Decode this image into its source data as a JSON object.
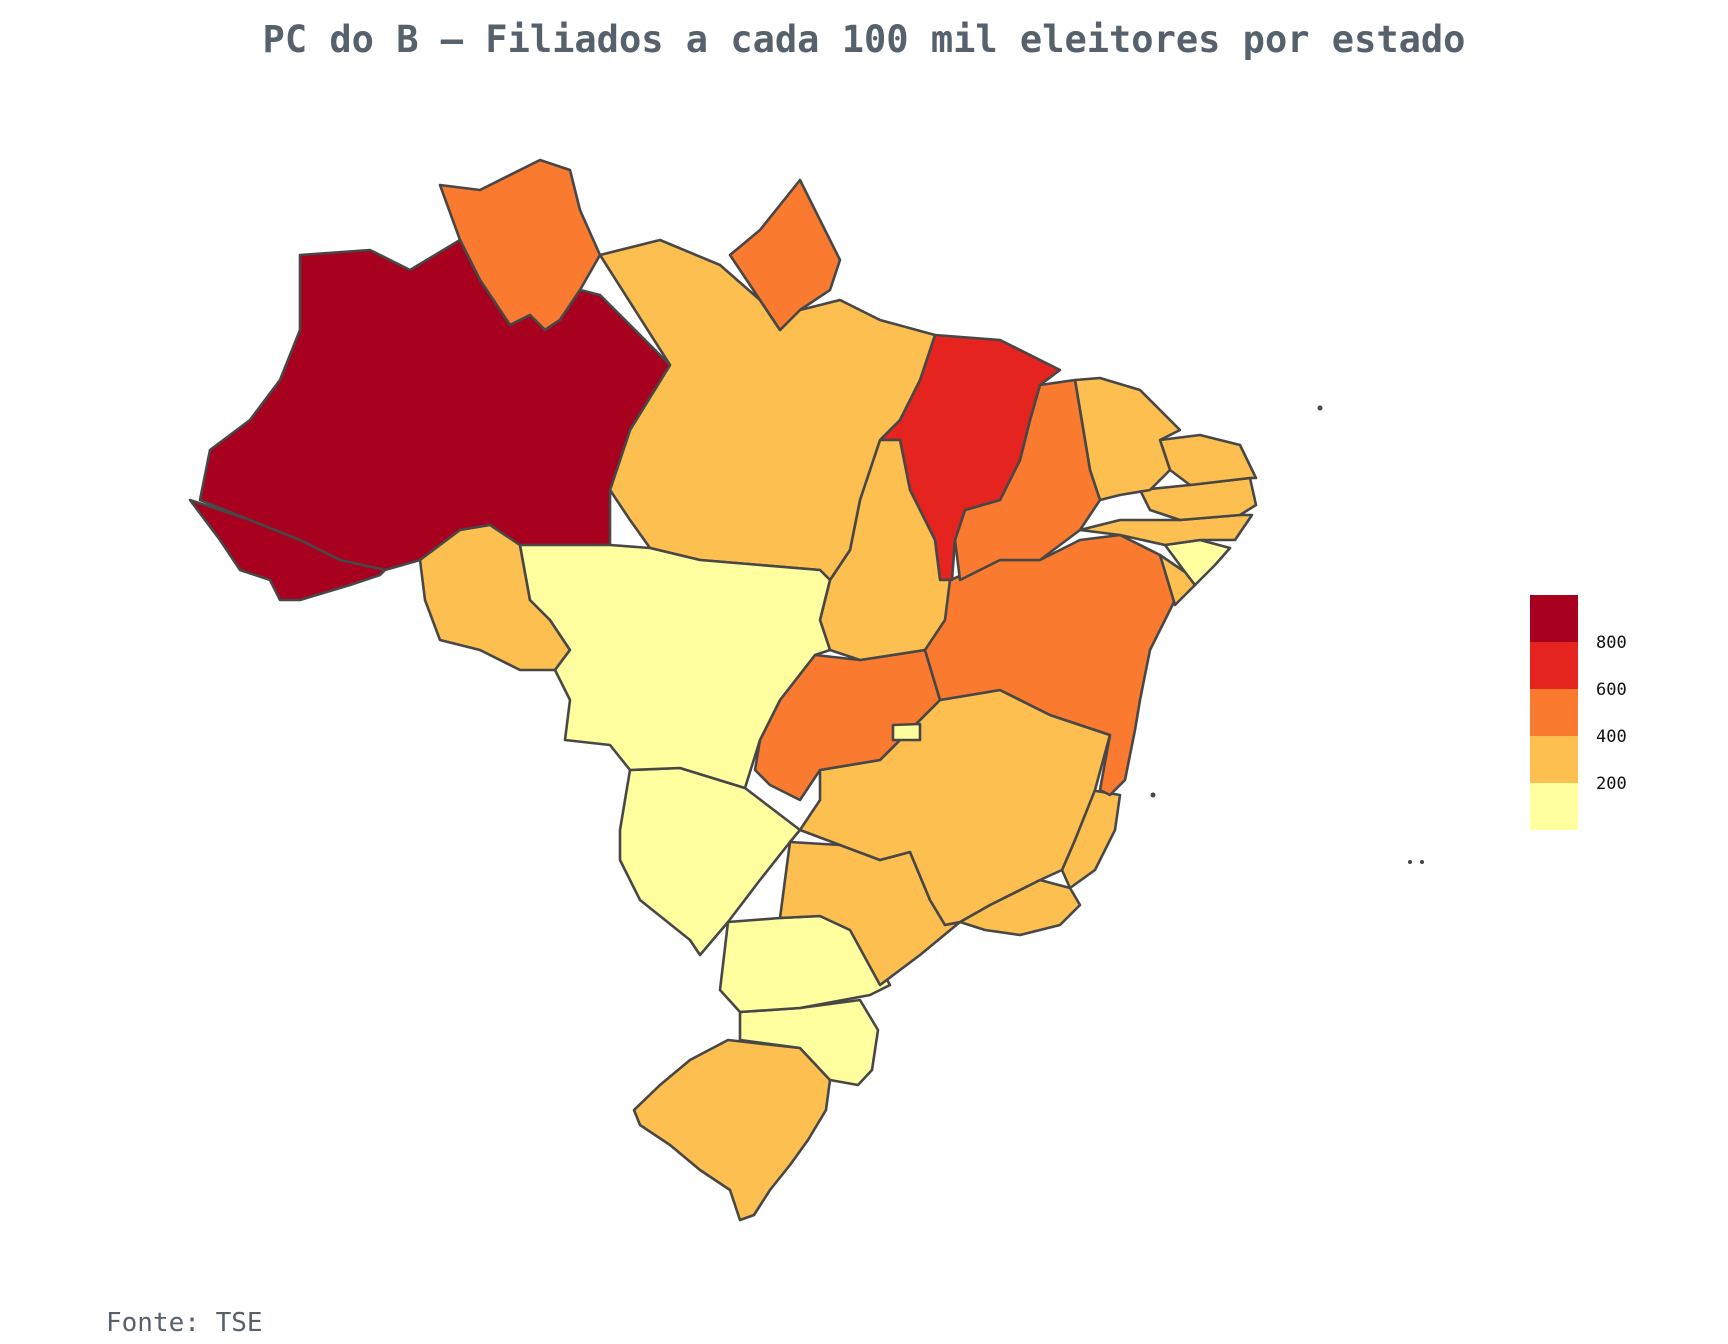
{
  "title": "PC do B – Filiados a cada 100 mil eleitores por estado",
  "source": "Fonte: TSE",
  "legend": {
    "ticks": [
      "800",
      "600",
      "400",
      "200"
    ],
    "bins": [
      {
        "range": [
          0,
          200
        ],
        "color": "#ffff9f"
      },
      {
        "range": [
          200,
          400
        ],
        "color": "#fdbf4f"
      },
      {
        "range": [
          400,
          600
        ],
        "color": "#fa7a2f"
      },
      {
        "range": [
          600,
          800
        ],
        "color": "#e5241f"
      },
      {
        "range": [
          800,
          1000
        ],
        "color": "#a8001f"
      }
    ]
  },
  "states": [
    {
      "id": "AC",
      "bin": 4
    },
    {
      "id": "AM",
      "bin": 4
    },
    {
      "id": "RR",
      "bin": 2
    },
    {
      "id": "AP",
      "bin": 2
    },
    {
      "id": "PA",
      "bin": 1
    },
    {
      "id": "MA",
      "bin": 3
    },
    {
      "id": "PI",
      "bin": 2
    },
    {
      "id": "CE",
      "bin": 1
    },
    {
      "id": "RN",
      "bin": 1
    },
    {
      "id": "PB",
      "bin": 1
    },
    {
      "id": "PE",
      "bin": 1
    },
    {
      "id": "AL",
      "bin": 0
    },
    {
      "id": "SE",
      "bin": 1
    },
    {
      "id": "BA",
      "bin": 2
    },
    {
      "id": "TO",
      "bin": 1
    },
    {
      "id": "RO",
      "bin": 1
    },
    {
      "id": "MT",
      "bin": 0
    },
    {
      "id": "GO",
      "bin": 2
    },
    {
      "id": "DF",
      "bin": 0
    },
    {
      "id": "MG",
      "bin": 1
    },
    {
      "id": "ES",
      "bin": 1
    },
    {
      "id": "RJ",
      "bin": 1
    },
    {
      "id": "SP",
      "bin": 1
    },
    {
      "id": "MS",
      "bin": 0
    },
    {
      "id": "PR",
      "bin": 0
    },
    {
      "id": "SC",
      "bin": 0
    },
    {
      "id": "RS",
      "bin": 1
    }
  ]
}
